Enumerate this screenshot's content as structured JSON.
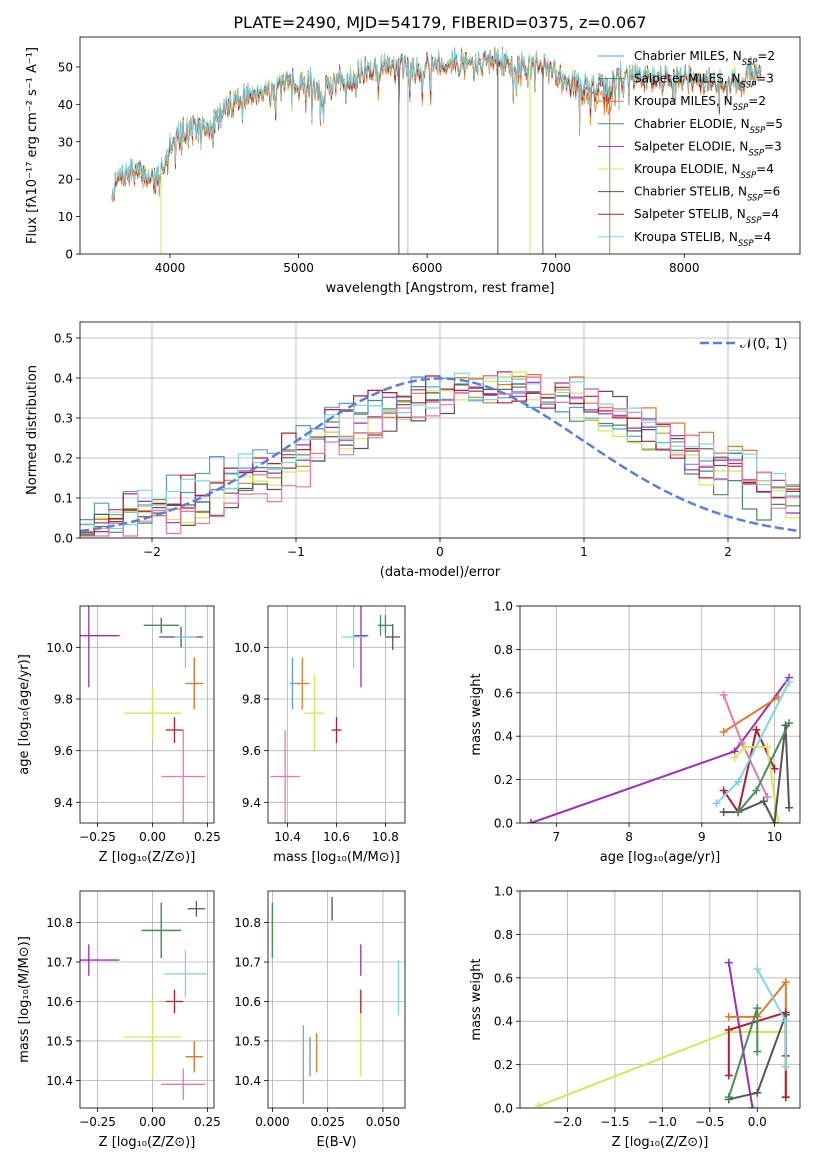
{
  "figure_title": "PLATE=2490, MJD=54179, FIBERID=0375, z=0.067",
  "model_colors": {
    "Chabrier MILES": "#5b9bd5",
    "Salpeter MILES": "#4a8c5a",
    "Kroupa MILES": "#e07b2a",
    "Chabrier ELODIE": "#4a8c5a",
    "Salpeter ELODIE": "#9b30b0",
    "Kroupa ELODIE": "#cde85a",
    "Chabrier STELIB": "#555555",
    "Salpeter STELIB": "#b21e2e",
    "Kroupa STELIB": "#7dd6e0"
  },
  "chart_data": [
    {
      "id": "spectrum",
      "type": "line",
      "xlabel": "wavelength [Angstrom, rest frame]",
      "ylabel": "Flux [f$_\\lambda$10$^{-17}$ erg cm$^{-2}$ s$^{-1}$ A$^{-1}$]",
      "ylabel_display": "Flux [fλ10⁻¹⁷ erg cm⁻² s⁻¹ A⁻¹]",
      "xlim": [
        3300,
        8900
      ],
      "ylim": [
        0,
        58
      ],
      "xticks": [
        4000,
        5000,
        6000,
        7000,
        8000
      ],
      "yticks": [
        0,
        10,
        20,
        30,
        40,
        50
      ],
      "grid": false,
      "legend_position": "top-right",
      "legend": [
        {
          "label": "Chabrier MILES, N$_{SSP}$=2",
          "label_main": "Chabrier MILES, N",
          "label_sub": "SSP",
          "label_end": "=2",
          "color": "#5b9bd5"
        },
        {
          "label": "Salpeter MILES, N$_{SSP}$=3",
          "label_main": "Salpeter MILES, N",
          "label_sub": "SSP",
          "label_end": "=3",
          "color": "#4a8c5a"
        },
        {
          "label": "Kroupa MILES, N$_{SSP}$=2",
          "label_main": "Kroupa MILES, N",
          "label_sub": "SSP",
          "label_end": "=2",
          "color": "#e07b2a"
        },
        {
          "label": "Chabrier ELODIE, N$_{SSP}$=5",
          "label_main": "Chabrier ELODIE, N",
          "label_sub": "SSP",
          "label_end": "=5",
          "color": "#4a8c5a"
        },
        {
          "label": "Salpeter ELODIE, N$_{SSP}$=3",
          "label_main": "Salpeter ELODIE, N",
          "label_sub": "SSP",
          "label_end": "=3",
          "color": "#9b30b0"
        },
        {
          "label": "Kroupa ELODIE, N$_{SSP}$=4",
          "label_main": "Kroupa ELODIE, N",
          "label_sub": "SSP",
          "label_end": "=4",
          "color": "#cde85a"
        },
        {
          "label": "Chabrier STELIB, N$_{SSP}$=6",
          "label_main": "Chabrier STELIB, N",
          "label_sub": "SSP",
          "label_end": "=6",
          "color": "#555555"
        },
        {
          "label": "Salpeter STELIB, N$_{SSP}$=4",
          "label_main": "Salpeter STELIB, N",
          "label_sub": "SSP",
          "label_end": "=4",
          "color": "#b21e2e"
        },
        {
          "label": "Kroupa STELIB, N$_{SSP}$=4",
          "label_main": "Kroupa STELIB, N",
          "label_sub": "SSP",
          "label_end": "=4",
          "color": "#7dd6e0"
        }
      ],
      "spectrum_envelope": {
        "x": [
          3550,
          3600,
          3700,
          3800,
          3900,
          3950,
          4000,
          4100,
          4200,
          4300,
          4400,
          4500,
          4600,
          4700,
          4800,
          4900,
          5000,
          5100,
          5180,
          5250,
          5400,
          5600,
          5800,
          5900,
          6000,
          6200,
          6400,
          6500,
          6600,
          6700,
          6800,
          7000,
          7200,
          7400,
          7500,
          7800,
          8000,
          8200,
          8400,
          8500,
          8600
        ],
        "y": [
          16,
          20,
          22,
          21,
          20,
          24,
          30,
          33,
          34,
          33,
          38,
          41,
          42,
          44,
          44,
          45,
          46,
          46,
          42,
          46,
          47,
          50,
          50,
          49,
          51,
          51,
          51,
          52,
          51,
          49,
          52,
          48,
          45,
          44,
          48,
          47,
          47,
          46,
          46,
          49,
          48
        ]
      },
      "model_offsets": [
        0,
        0.5,
        -0.8,
        -0.3,
        0.3,
        0.6,
        -0.2,
        0.2,
        0.4
      ],
      "model_tail_drop": [
        0,
        0,
        -4,
        0,
        0,
        0,
        0,
        -2,
        0
      ],
      "dropouts": [
        {
          "x": 3930,
          "series": "Kroupa ELODIE"
        },
        {
          "x": 5780,
          "series": "Chabrier STELIB"
        },
        {
          "x": 5850,
          "series": "Kroupa STELIB"
        },
        {
          "x": 6550,
          "series": "Chabrier STELIB"
        },
        {
          "x": 6800,
          "series": "Kroupa ELODIE"
        },
        {
          "x": 6900,
          "series": "Chabrier STELIB"
        },
        {
          "x": 7420,
          "series": "Kroupa MILES"
        }
      ]
    },
    {
      "id": "residuals",
      "type": "histogram",
      "xlabel": "(data-model)/error",
      "ylabel": "Normed distribution",
      "xlim": [
        -2.5,
        2.5
      ],
      "ylim": [
        0,
        0.54
      ],
      "xticks": [
        -2,
        -1,
        0,
        1,
        2
      ],
      "yticks": [
        0.0,
        0.1,
        0.2,
        0.3,
        0.4,
        0.5
      ],
      "grid": true,
      "legend_position": "top-right",
      "reference_curve": {
        "label": "$\\mathcal{N}(0,1)$",
        "label_display": "𝒩(0, 1)",
        "mu": 0,
        "sigma": 1,
        "color": "#5b7fd6",
        "style": "dashed"
      },
      "bin_width": 0.1
    },
    {
      "id": "age-vs-Z",
      "type": "errorbar",
      "xlabel": "Z [log$_{10}$(Z/Z$_\\odot$)]",
      "xlabel_display": "Z [log₁₀(Z/Z⊙)]",
      "ylabel": "age  [log$_{10}$(age/yr)]",
      "ylabel_display": "age  [log₁₀(age/yr)]",
      "xlim": [
        -0.33,
        0.28
      ],
      "ylim": [
        9.32,
        10.16
      ],
      "xticks": [
        -0.25,
        0.0,
        0.25
      ],
      "xticklabels": [
        "−0.25",
        "0.00",
        "0.25"
      ],
      "yticks": [
        9.4,
        9.6,
        9.8,
        10.0
      ],
      "grid": true,
      "points": [
        {
          "model": "Chabrier MILES",
          "x": 0.19,
          "y": 9.86,
          "xerr": 0.02,
          "yerr": 0.1
        },
        {
          "model": "Salpeter MILES",
          "x": 0.04,
          "y": 10.085,
          "xerr": 0.08,
          "yerr": 0.03
        },
        {
          "model": "Kroupa MILES",
          "x": 0.19,
          "y": 9.86,
          "xerr": 0.04,
          "yerr": 0.1
        },
        {
          "model": "Chabrier ELODIE",
          "x": 0.04,
          "y": 10.085,
          "xerr": 0.08,
          "yerr": 0.03
        },
        {
          "model": "Salpeter ELODIE",
          "x": -0.29,
          "y": 10.045,
          "xerr": 0.14,
          "yerr": 0.2
        },
        {
          "model": "Kroupa ELODIE",
          "x": 0.0,
          "y": 9.745,
          "xerr": 0.13,
          "yerr": 0.1
        },
        {
          "model": "Chabrier STELIB",
          "x": 0.13,
          "y": 10.04,
          "xerr": 0.1,
          "yerr": 0.04
        },
        {
          "model": "Salpeter STELIB",
          "x": 0.1,
          "y": 9.68,
          "xerr": 0.04,
          "yerr": 0.05
        },
        {
          "model": "Kroupa STELIB",
          "x": 0.15,
          "y": 10.04,
          "xerr": 0.05,
          "yerr": 0.12
        },
        {
          "model": "Kroupa MILES",
          "x": 0.14,
          "y": 9.5,
          "xerr": 0.1,
          "yerr": 0.18,
          "color": "#e879a8"
        }
      ]
    },
    {
      "id": "age-vs-mass",
      "type": "errorbar",
      "xlabel": "mass [log$_{10}$(M/M$_\\odot$)]",
      "xlabel_display": "mass [log₁₀(M/M⊙)]",
      "ylabel": "",
      "xlim": [
        10.32,
        10.88
      ],
      "ylim": [
        9.32,
        10.16
      ],
      "xticks": [
        10.4,
        10.6,
        10.8
      ],
      "yticks": [
        9.4,
        9.6,
        9.8,
        10.0
      ],
      "grid": true,
      "points": [
        {
          "model": "Chabrier MILES",
          "x": 10.42,
          "y": 9.86,
          "xerr": 0.01,
          "yerr": 0.1
        },
        {
          "model": "Salpeter MILES",
          "x": 10.8,
          "y": 10.085,
          "xerr": 0.03,
          "yerr": 0.04
        },
        {
          "model": "Kroupa MILES",
          "x": 10.46,
          "y": 9.86,
          "xerr": 0.03,
          "yerr": 0.1
        },
        {
          "model": "Chabrier ELODIE",
          "x": 10.78,
          "y": 10.085,
          "xerr": 0.01,
          "yerr": 0.04
        },
        {
          "model": "Salpeter ELODIE",
          "x": 10.7,
          "y": 10.045,
          "xerr": 0.03,
          "yerr": 0.2
        },
        {
          "model": "Kroupa ELODIE",
          "x": 10.51,
          "y": 9.745,
          "xerr": 0.04,
          "yerr": 0.15
        },
        {
          "model": "Chabrier STELIB",
          "x": 10.83,
          "y": 10.04,
          "xerr": 0.03,
          "yerr": 0.05
        },
        {
          "model": "Salpeter STELIB",
          "x": 10.6,
          "y": 9.68,
          "xerr": 0.02,
          "yerr": 0.05
        },
        {
          "model": "Kroupa STELIB",
          "x": 10.67,
          "y": 10.04,
          "xerr": 0.05,
          "yerr": 0.12
        },
        {
          "model": "Kroupa MILES",
          "x": 10.39,
          "y": 9.5,
          "xerr": 0.06,
          "yerr": 0.18,
          "color": "#e879a8"
        }
      ]
    },
    {
      "id": "massweight-vs-age",
      "type": "line",
      "xlabel": "age  [log$_{10}$(age/yr)]",
      "xlabel_display": "age  [log₁₀(age/yr)]",
      "ylabel": "mass weight",
      "xlim": [
        6.5,
        10.35
      ],
      "ylim": [
        0,
        1.0
      ],
      "xticks": [
        7,
        8,
        9,
        10
      ],
      "yticks": [
        0.0,
        0.2,
        0.4,
        0.6,
        0.8,
        1.0
      ],
      "grid": true,
      "series": [
        {
          "model": "Salpeter ELODIE",
          "x": [
            6.65,
            9.45,
            10.2
          ],
          "y": [
            0.0,
            0.33,
            0.67
          ]
        },
        {
          "model": "Kroupa MILES",
          "x": [
            9.3,
            10.05
          ],
          "y": [
            0.42,
            0.58
          ]
        },
        {
          "model": "Kroupa MILES",
          "color": "#e879a8",
          "x": [
            9.3,
            9.55,
            9.9
          ],
          "y": [
            0.59,
            0.37,
            0.12
          ]
        },
        {
          "model": "Salpeter STELIB",
          "x": [
            9.3,
            9.5,
            9.75,
            10.0
          ],
          "y": [
            0.15,
            0.05,
            0.43,
            0.25
          ]
        },
        {
          "model": "Kroupa ELODIE",
          "x": [
            9.45,
            9.6,
            9.9,
            10.05
          ],
          "y": [
            0.3,
            0.35,
            0.35,
            0.0
          ]
        },
        {
          "model": "Chabrier STELIB",
          "x": [
            9.3,
            9.5,
            9.85,
            10.0,
            10.15,
            10.2
          ],
          "y": [
            0.05,
            0.05,
            0.1,
            0.0,
            0.45,
            0.07
          ]
        },
        {
          "model": "Chabrier ELODIE",
          "x": [
            9.5,
            9.75,
            10.2
          ],
          "y": [
            0.05,
            0.15,
            0.46
          ]
        },
        {
          "model": "Kroupa STELIB",
          "x": [
            9.2,
            9.5,
            10.2
          ],
          "y": [
            0.09,
            0.19,
            0.65
          ]
        }
      ]
    },
    {
      "id": "mass-vs-Z",
      "type": "errorbar",
      "xlabel": "Z [log$_{10}$(Z/Z$_\\odot$)]",
      "xlabel_display": "Z [log₁₀(Z/Z⊙)]",
      "ylabel": "mass [log$_{10}$(M/M$_\\odot$)]",
      "ylabel_display": "mass [log₁₀(M/M⊙)]",
      "xlim": [
        -0.33,
        0.28
      ],
      "ylim": [
        10.33,
        10.88
      ],
      "xticks": [
        -0.25,
        0.0,
        0.25
      ],
      "xticklabels": [
        "−0.25",
        "0.00",
        "0.25"
      ],
      "yticks": [
        10.4,
        10.5,
        10.6,
        10.7,
        10.8
      ],
      "grid": true,
      "points": [
        {
          "model": "Chabrier MILES",
          "x": 0.19,
          "y": 10.46,
          "xerr": 0.02,
          "yerr": 0.03
        },
        {
          "model": "Salpeter MILES",
          "x": 0.04,
          "y": 10.78,
          "xerr": 0.09,
          "yerr": 0.07
        },
        {
          "model": "Kroupa MILES",
          "x": 0.19,
          "y": 10.46,
          "xerr": 0.04,
          "yerr": 0.04
        },
        {
          "model": "Chabrier ELODIE",
          "x": 0.04,
          "y": 10.78,
          "xerr": 0.09,
          "yerr": 0.07
        },
        {
          "model": "Salpeter ELODIE",
          "x": -0.29,
          "y": 10.705,
          "xerr": 0.14,
          "yerr": 0.04
        },
        {
          "model": "Kroupa ELODIE",
          "x": 0.0,
          "y": 10.51,
          "xerr": 0.13,
          "yerr": 0.1
        },
        {
          "model": "Chabrier STELIB",
          "x": 0.2,
          "y": 10.835,
          "xerr": 0.04,
          "yerr": 0.02
        },
        {
          "model": "Salpeter STELIB",
          "x": 0.1,
          "y": 10.6,
          "xerr": 0.04,
          "yerr": 0.03
        },
        {
          "model": "Kroupa STELIB",
          "x": 0.15,
          "y": 10.67,
          "xerr": 0.1,
          "yerr": 0.06
        },
        {
          "model": "Kroupa MILES",
          "x": 0.14,
          "y": 10.39,
          "xerr": 0.1,
          "yerr": 0.04,
          "color": "#e879a8"
        }
      ]
    },
    {
      "id": "mass-vs-EBV",
      "type": "errorbar",
      "xlabel": "E(B-V)",
      "ylabel": "",
      "xlim": [
        -0.002,
        0.06
      ],
      "ylim": [
        10.33,
        10.88
      ],
      "xticks": [
        0.0,
        0.025,
        0.05
      ],
      "xticklabels": [
        "0.000",
        "0.025",
        "0.050"
      ],
      "yticks": [
        10.4,
        10.5,
        10.6,
        10.7,
        10.8
      ],
      "grid": true,
      "points": [
        {
          "model": "Chabrier MILES",
          "x": 0.017,
          "y": 10.46,
          "xerr": 0,
          "yerr": 0.05
        },
        {
          "model": "Salpeter MILES",
          "x": 0.0,
          "y": 10.78,
          "xerr": 0,
          "yerr": 0.07
        },
        {
          "model": "Kroupa MILES",
          "x": 0.02,
          "y": 10.47,
          "xerr": 0,
          "yerr": 0.05
        },
        {
          "model": "Chabrier ELODIE",
          "x": 0.0,
          "y": 10.78,
          "xerr": 0,
          "yerr": 0.07
        },
        {
          "model": "Salpeter ELODIE",
          "x": 0.04,
          "y": 10.705,
          "xerr": 0,
          "yerr": 0.04
        },
        {
          "model": "Kroupa ELODIE",
          "x": 0.04,
          "y": 10.51,
          "xerr": 0,
          "yerr": 0.1
        },
        {
          "model": "Chabrier STELIB",
          "x": 0.027,
          "y": 10.835,
          "xerr": 0,
          "yerr": 0.03
        },
        {
          "model": "Salpeter STELIB",
          "x": 0.04,
          "y": 10.6,
          "xerr": 0,
          "yerr": 0.03
        },
        {
          "model": "Kroupa STELIB",
          "x": 0.057,
          "y": 10.635,
          "xerr": 0,
          "yerr": 0.07
        },
        {
          "model": "Kroupa MILES",
          "x": 0.014,
          "y": 10.44,
          "xerr": 0,
          "yerr": 0.1,
          "color": "#e879a8"
        }
      ]
    },
    {
      "id": "massweight-vs-Z",
      "type": "line",
      "xlabel": "Z [log$_{10}$(Z/Z$_\\odot$)]",
      "xlabel_display": "Z [log₁₀(Z/Z⊙)]",
      "ylabel": "mass weight",
      "xlim": [
        -2.5,
        0.45
      ],
      "ylim": [
        0,
        1.0
      ],
      "xticks": [
        -2.0,
        -1.5,
        -1.0,
        -0.5,
        0.0
      ],
      "xticklabels": [
        "−2.0",
        "−1.5",
        "−1.0",
        "−0.5",
        "0.0"
      ],
      "yticks": [
        0.0,
        0.2,
        0.4,
        0.6,
        0.8,
        1.0
      ],
      "grid": true,
      "series": [
        {
          "model": "Kroupa ELODIE",
          "x": [
            -2.3,
            -0.3,
            0.3
          ],
          "y": [
            0.01,
            0.35,
            0.35
          ]
        },
        {
          "model": "Salpeter ELODIE",
          "x": [
            -0.3,
            -0.05
          ],
          "y": [
            0.67,
            0.0
          ]
        },
        {
          "model": "Kroupa MILES",
          "x": [
            -0.3,
            0.0,
            0.3,
            0.3
          ],
          "y": [
            0.42,
            0.42,
            0.58,
            0.05
          ]
        },
        {
          "model": "Salpeter STELIB",
          "x": [
            -0.3,
            -0.3,
            0.3,
            0.3
          ],
          "y": [
            0.15,
            0.36,
            0.44,
            0.05
          ]
        },
        {
          "model": "Chabrier STELIB",
          "x": [
            -0.3,
            0.0,
            0.3,
            0.3
          ],
          "y": [
            0.04,
            0.07,
            0.43,
            0.24
          ]
        },
        {
          "model": "Chabrier ELODIE",
          "x": [
            -0.3,
            0.0,
            0.0
          ],
          "y": [
            0.05,
            0.46,
            0.26
          ]
        },
        {
          "model": "Kroupa STELIB",
          "x": [
            0.0,
            0.3,
            0.3
          ],
          "y": [
            0.64,
            0.4,
            0.19
          ]
        }
      ]
    }
  ]
}
